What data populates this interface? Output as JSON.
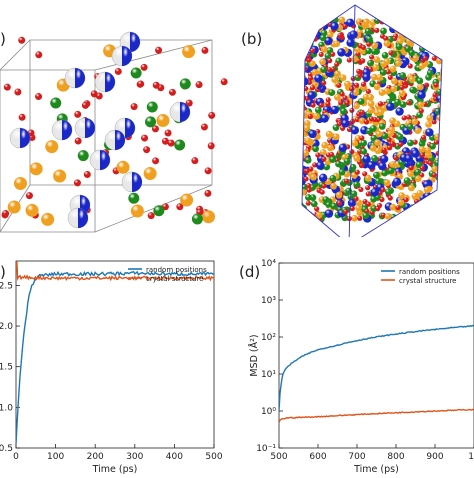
{
  "panels": {
    "a": {
      "label": ")"
    },
    "b": {
      "label": "(b)"
    },
    "c": {
      "label": ")"
    },
    "d": {
      "label": "(d)"
    }
  },
  "colors": {
    "oxygen": "#d41e1e",
    "orange": "#f0a020",
    "green": "#1e8a1e",
    "blue": "#1a28c8",
    "white": "#e8e8e8",
    "box_edge": "#8a8a8a",
    "box_edge_b": "#3030c8",
    "random_line": "#1f77b4",
    "crystal_line": "#e0531a"
  },
  "chart_data": [
    {
      "type": "line",
      "title": "",
      "xlabel": "Time (ps)",
      "ylabel": "",
      "xlim": [
        0,
        500
      ],
      "ylim": [
        0.5,
        2.8
      ],
      "xticks": [
        "0",
        "100",
        "200",
        "300",
        "400",
        "500"
      ],
      "yticks": [
        "0.5",
        "1.0",
        "1.5",
        "2.0",
        "2.5"
      ],
      "legend_position": "top-right",
      "series": [
        {
          "name": "random positions",
          "color": "#1f77b4",
          "x": [
            0,
            5,
            10,
            20,
            30,
            40,
            50,
            60,
            100,
            200,
            300,
            400,
            500
          ],
          "y": [
            0.55,
            1.0,
            1.4,
            1.9,
            2.3,
            2.5,
            2.58,
            2.62,
            2.64,
            2.64,
            2.65,
            2.64,
            2.64
          ]
        },
        {
          "name": "crystal structure",
          "color": "#e0531a",
          "x": [
            0,
            2,
            4,
            10,
            100,
            200,
            300,
            400,
            500
          ],
          "y": [
            2.7,
            2.78,
            2.6,
            2.6,
            2.59,
            2.59,
            2.59,
            2.59,
            2.59
          ]
        }
      ]
    },
    {
      "type": "line",
      "title": "",
      "xlabel": "Time (ps)",
      "ylabel": "MSD (Å²)",
      "yscale": "log",
      "xlim": [
        500,
        1000
      ],
      "ylim": [
        0.1,
        10000
      ],
      "xticks": [
        "500",
        "600",
        "700",
        "800",
        "900",
        "10"
      ],
      "yticks": [
        "10⁻¹",
        "10⁰",
        "10¹",
        "10²",
        "10³",
        "10⁴"
      ],
      "legend_position": "top-right",
      "series": [
        {
          "name": "random positions",
          "color": "#1f77b4",
          "x": [
            500,
            505,
            510,
            520,
            540,
            560,
            600,
            650,
            700,
            750,
            800,
            850,
            900,
            950,
            1000
          ],
          "y": [
            1.0,
            5.0,
            10.0,
            15.0,
            22.0,
            30.0,
            45.0,
            60.0,
            80.0,
            100.0,
            120.0,
            140.0,
            160.0,
            180.0,
            200.0
          ]
        },
        {
          "name": "crystal structure",
          "color": "#e0531a",
          "x": [
            500,
            505,
            520,
            600,
            700,
            800,
            900,
            1000
          ],
          "y": [
            0.5,
            0.6,
            0.65,
            0.7,
            0.8,
            0.9,
            1.0,
            1.1
          ]
        }
      ]
    }
  ]
}
